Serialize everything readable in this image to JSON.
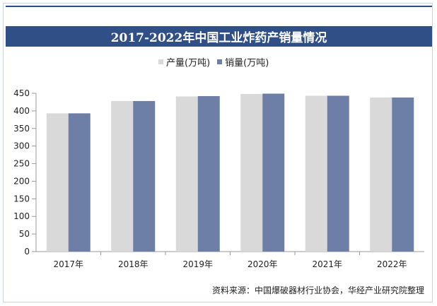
{
  "title": "2017-2022年中国工业炸药产销量情况",
  "source": "资料来源：中国爆破器材行业协会，华经产业研究院整理",
  "colors": {
    "title_bg": "#2f4f86",
    "production": "#d9d9d9",
    "sales": "#6d7fa6"
  },
  "chart_data": {
    "type": "bar",
    "categories": [
      "2017年",
      "2018年",
      "2019年",
      "2020年",
      "2021年",
      "2022年"
    ],
    "series": [
      {
        "name": "产量(万吨)",
        "values": [
          393,
          428,
          441,
          448,
          443,
          438
        ]
      },
      {
        "name": "销量(万吨)",
        "values": [
          393,
          428,
          442,
          449,
          443,
          438
        ]
      }
    ],
    "yticks": [
      0,
      50,
      100,
      150,
      200,
      250,
      300,
      350,
      400,
      450
    ],
    "ylim": [
      0,
      450
    ],
    "grid": false,
    "legend_position": "top-center"
  }
}
